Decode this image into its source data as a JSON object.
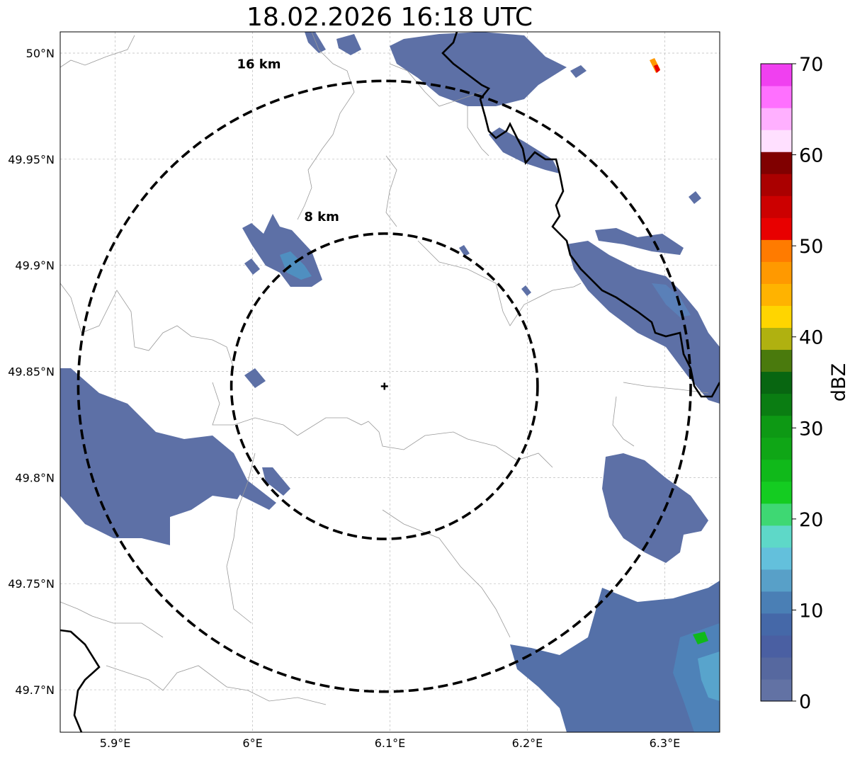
{
  "title": "18.02.2026 16:18 UTC",
  "map": {
    "lon_range": [
      5.86,
      6.34
    ],
    "lat_range": [
      49.68,
      50.01
    ],
    "center": {
      "lon": 6.096,
      "lat": 49.843
    },
    "x_ticks": [
      {
        "value": 5.9,
        "label": "5.9°E"
      },
      {
        "value": 6.0,
        "label": "6°E"
      },
      {
        "value": 6.1,
        "label": "6.1°E"
      },
      {
        "value": 6.2,
        "label": "6.2°E"
      },
      {
        "value": 6.3,
        "label": "6.3°E"
      }
    ],
    "y_ticks": [
      {
        "value": 50.0,
        "label": "50°N"
      },
      {
        "value": 49.95,
        "label": "49.95°N"
      },
      {
        "value": 49.9,
        "label": "49.9°N"
      },
      {
        "value": 49.85,
        "label": "49.85°N"
      },
      {
        "value": 49.8,
        "label": "49.8°N"
      },
      {
        "value": 49.75,
        "label": "49.75°N"
      },
      {
        "value": 49.7,
        "label": "49.7°N"
      }
    ],
    "range_rings": [
      {
        "radius_km": 8,
        "label": "8 km"
      },
      {
        "radius_km": 16,
        "label": "16 km"
      }
    ],
    "gridlines": true
  },
  "colorbar": {
    "title": "dBZ",
    "min": 0,
    "max": 70,
    "tick_labels": [
      "0",
      "10",
      "20",
      "30",
      "40",
      "50",
      "60",
      "70"
    ],
    "colors": [
      "#6272a4",
      "#56689f",
      "#4a5fa2",
      "#4568a8",
      "#4a7fb5",
      "#58a0c8",
      "#63c0dc",
      "#5ed8c8",
      "#3ed873",
      "#14cc21",
      "#10b91a",
      "#0fa616",
      "#0d9914",
      "#0a7d12",
      "#086611",
      "#4a7a0d",
      "#b0b110",
      "#ffd500",
      "#ffb300",
      "#ff9900",
      "#ff7b00",
      "#e80000",
      "#cc0000",
      "#aa0000",
      "#800000",
      "#ffe0ff",
      "#ffb0ff",
      "#ff70ff",
      "#f040f0"
    ]
  }
}
